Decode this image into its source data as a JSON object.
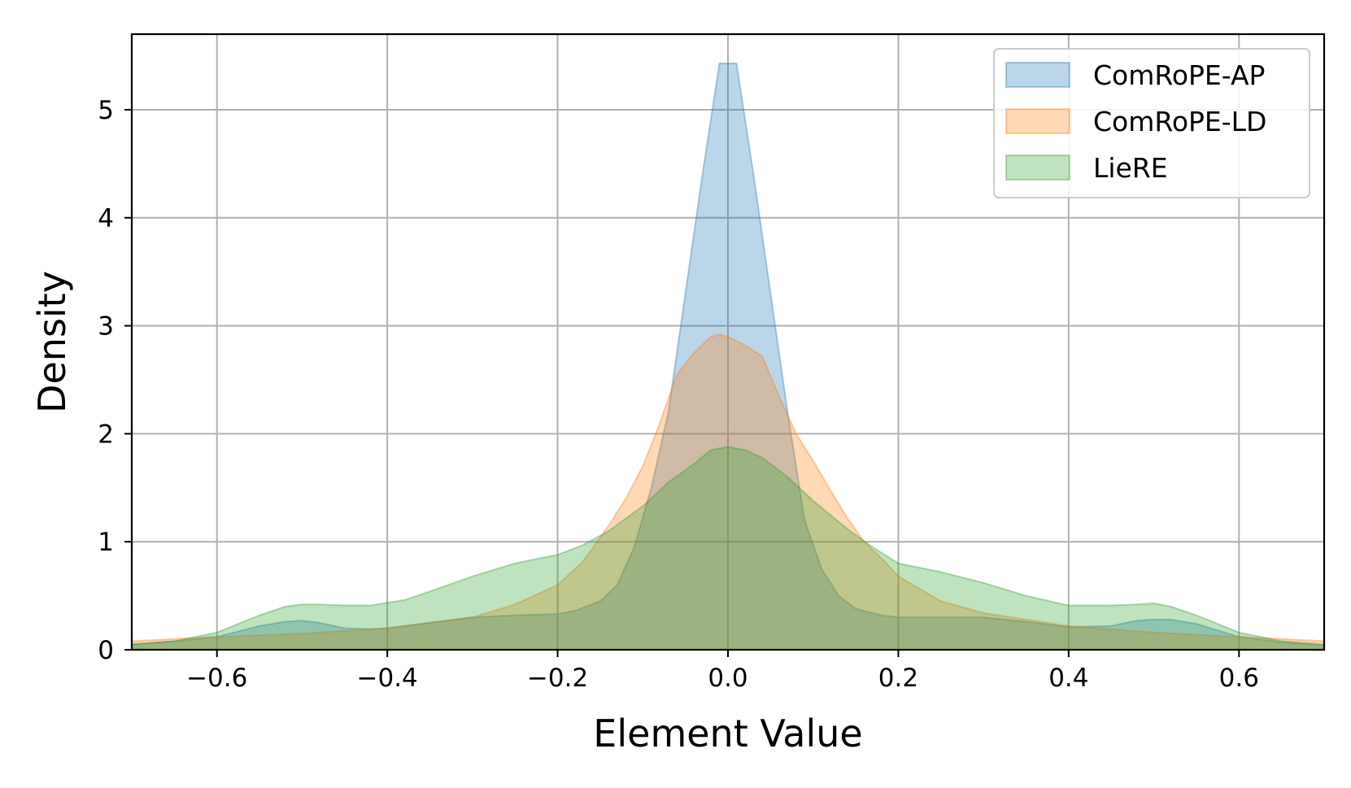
{
  "chart_data": {
    "type": "area",
    "title": "",
    "xlabel": "Element Value",
    "ylabel": "Density",
    "xlim": [
      -0.7,
      0.7
    ],
    "ylim": [
      0,
      5.7
    ],
    "xticks": [
      -0.6,
      -0.4,
      -0.2,
      0.0,
      0.2,
      0.4,
      0.6
    ],
    "xtick_labels": [
      "−0.6",
      "−0.4",
      "−0.2",
      "0.0",
      "0.2",
      "0.4",
      "0.6"
    ],
    "yticks": [
      0,
      1,
      2,
      3,
      4,
      5
    ],
    "ytick_labels": [
      "0",
      "1",
      "2",
      "3",
      "4",
      "5"
    ],
    "grid": true,
    "legend_position": "top-right",
    "series": [
      {
        "name": "ComRoPE-AP",
        "color": "#1f77b4",
        "x": [
          -0.7,
          -0.65,
          -0.6,
          -0.55,
          -0.52,
          -0.5,
          -0.48,
          -0.45,
          -0.42,
          -0.4,
          -0.35,
          -0.3,
          -0.25,
          -0.2,
          -0.18,
          -0.15,
          -0.13,
          -0.11,
          -0.09,
          -0.07,
          -0.05,
          -0.03,
          -0.01,
          0.0,
          0.01,
          0.03,
          0.05,
          0.07,
          0.09,
          0.11,
          0.13,
          0.15,
          0.18,
          0.2,
          0.25,
          0.3,
          0.35,
          0.4,
          0.45,
          0.48,
          0.5,
          0.52,
          0.55,
          0.6,
          0.65,
          0.7
        ],
        "y": [
          0.05,
          0.08,
          0.12,
          0.22,
          0.26,
          0.27,
          0.25,
          0.2,
          0.19,
          0.2,
          0.25,
          0.3,
          0.32,
          0.33,
          0.36,
          0.45,
          0.6,
          0.95,
          1.5,
          2.2,
          3.3,
          4.4,
          5.43,
          5.43,
          5.43,
          4.4,
          3.3,
          2.2,
          1.2,
          0.75,
          0.5,
          0.38,
          0.32,
          0.3,
          0.3,
          0.3,
          0.26,
          0.21,
          0.22,
          0.27,
          0.28,
          0.28,
          0.24,
          0.12,
          0.07,
          0.04
        ]
      },
      {
        "name": "ComRoPE-LD",
        "color": "#ff7f0e",
        "x": [
          -0.7,
          -0.6,
          -0.5,
          -0.4,
          -0.3,
          -0.25,
          -0.2,
          -0.17,
          -0.14,
          -0.12,
          -0.1,
          -0.08,
          -0.06,
          -0.04,
          -0.02,
          -0.01,
          0.0,
          0.02,
          0.04,
          0.06,
          0.08,
          0.1,
          0.12,
          0.14,
          0.16,
          0.18,
          0.2,
          0.25,
          0.3,
          0.35,
          0.4,
          0.5,
          0.6,
          0.7
        ],
        "y": [
          0.08,
          0.12,
          0.15,
          0.2,
          0.3,
          0.42,
          0.6,
          0.82,
          1.15,
          1.4,
          1.7,
          2.1,
          2.55,
          2.75,
          2.9,
          2.92,
          2.9,
          2.82,
          2.72,
          2.35,
          2.0,
          1.75,
          1.48,
          1.22,
          1.0,
          0.85,
          0.68,
          0.45,
          0.34,
          0.28,
          0.22,
          0.16,
          0.12,
          0.08
        ]
      },
      {
        "name": "LieRE",
        "color": "#2ca02c",
        "x": [
          -0.7,
          -0.65,
          -0.6,
          -0.55,
          -0.52,
          -0.5,
          -0.48,
          -0.45,
          -0.42,
          -0.38,
          -0.35,
          -0.3,
          -0.25,
          -0.2,
          -0.17,
          -0.14,
          -0.1,
          -0.07,
          -0.04,
          -0.02,
          0.0,
          0.02,
          0.04,
          0.07,
          0.1,
          0.14,
          0.17,
          0.2,
          0.25,
          0.3,
          0.35,
          0.4,
          0.45,
          0.48,
          0.5,
          0.52,
          0.55,
          0.6,
          0.65,
          0.7
        ],
        "y": [
          0.05,
          0.08,
          0.16,
          0.32,
          0.4,
          0.42,
          0.42,
          0.41,
          0.41,
          0.46,
          0.54,
          0.68,
          0.8,
          0.88,
          0.97,
          1.1,
          1.33,
          1.55,
          1.72,
          1.85,
          1.88,
          1.85,
          1.78,
          1.6,
          1.38,
          1.12,
          0.95,
          0.8,
          0.72,
          0.62,
          0.5,
          0.41,
          0.41,
          0.42,
          0.43,
          0.4,
          0.32,
          0.16,
          0.08,
          0.05
        ]
      }
    ]
  }
}
